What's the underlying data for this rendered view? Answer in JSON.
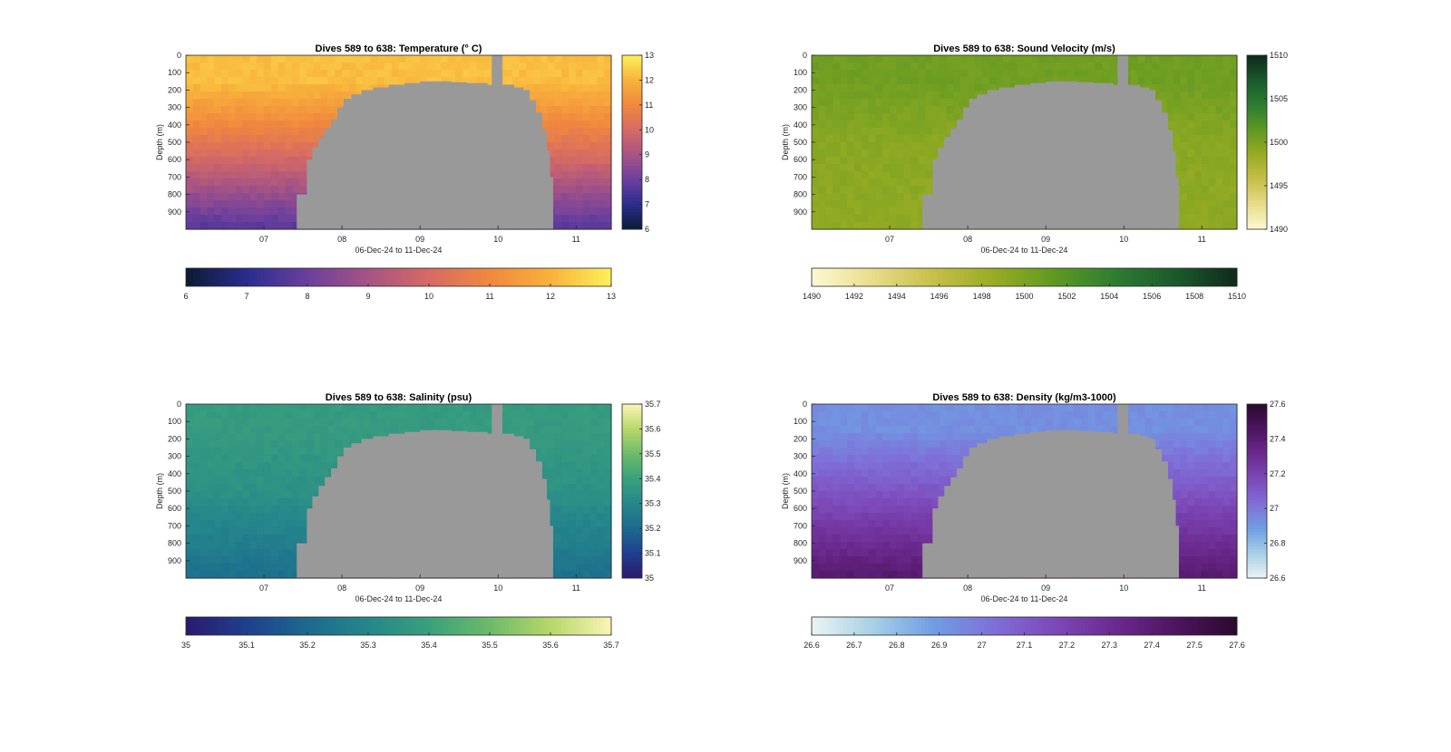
{
  "chart_data": [
    {
      "type": "heatmap",
      "title": "Dives 589 to 638: Temperature (° C)",
      "xlabel": "06-Dec-24 to 11-Dec-24",
      "ylabel": "Depth (m)",
      "x_ticks": [
        "07",
        "08",
        "09",
        "10",
        "11"
      ],
      "x_tick_days": [
        7,
        8,
        9,
        10,
        11
      ],
      "xlim_days": [
        6.0,
        11.45
      ],
      "y_ticks": [
        0,
        100,
        200,
        300,
        400,
        500,
        600,
        700,
        800,
        900
      ],
      "ylim": [
        0,
        1000
      ],
      "y_reversed": true,
      "clim": [
        6,
        13
      ],
      "colorbar_ticks": [
        6,
        7,
        8,
        9,
        10,
        11,
        12,
        13
      ],
      "horizontal_colorbar_ticks": [
        6,
        7,
        8,
        9,
        10,
        11,
        12,
        13
      ],
      "colormap": [
        "#0b1b33",
        "#2a2d8e",
        "#6b3f9e",
        "#a65385",
        "#d66a64",
        "#f0883e",
        "#f8b23b",
        "#fdf05a"
      ],
      "surface_value": 12.2,
      "mid_value": 10.5,
      "deep_value": 7.6,
      "mask_color": "#999999"
    },
    {
      "type": "heatmap",
      "title": "Dives 589 to 638: Sound Velocity (m/s)",
      "xlabel": "06-Dec-24 to 11-Dec-24",
      "ylabel": "Depth (m)",
      "x_ticks": [
        "07",
        "08",
        "09",
        "10",
        "11"
      ],
      "x_tick_days": [
        7,
        8,
        9,
        10,
        11
      ],
      "xlim_days": [
        6.0,
        11.45
      ],
      "y_ticks": [
        0,
        100,
        200,
        300,
        400,
        500,
        600,
        700,
        800,
        900
      ],
      "ylim": [
        0,
        1000
      ],
      "y_reversed": true,
      "clim": [
        1490,
        1510
      ],
      "colorbar_ticks": [
        1490,
        1495,
        1500,
        1505,
        1510
      ],
      "horizontal_colorbar_ticks": [
        1490,
        1492,
        1494,
        1496,
        1498,
        1500,
        1502,
        1504,
        1506,
        1508,
        1510
      ],
      "colormap": [
        "#fdf9d3",
        "#e9dc8a",
        "#c7bf4a",
        "#98ac23",
        "#5f9922",
        "#2e7d32",
        "#1a5a2c",
        "#102a1c"
      ],
      "surface_value": 1500.6,
      "mid_value": 1499.3,
      "deep_value": 1499.0,
      "mask_color": "#999999"
    },
    {
      "type": "heatmap",
      "title": "Dives 589 to 638: Salinity (psu)",
      "xlabel": "06-Dec-24 to 11-Dec-24",
      "ylabel": "Depth (m)",
      "x_ticks": [
        "07",
        "08",
        "09",
        "10",
        "11"
      ],
      "x_tick_days": [
        7,
        8,
        9,
        10,
        11
      ],
      "xlim_days": [
        6.0,
        11.45
      ],
      "y_ticks": [
        0,
        100,
        200,
        300,
        400,
        500,
        600,
        700,
        800,
        900
      ],
      "ylim": [
        0,
        1000
      ],
      "y_reversed": true,
      "clim": [
        35,
        35.7
      ],
      "colorbar_ticks": [
        35,
        35.1,
        35.2,
        35.3,
        35.4,
        35.5,
        35.6,
        35.7
      ],
      "horizontal_colorbar_ticks": [
        35,
        35.1,
        35.2,
        35.3,
        35.4,
        35.5,
        35.6,
        35.7
      ],
      "colormap": [
        "#2b1a6e",
        "#1f3f8f",
        "#1c6a8e",
        "#25878b",
        "#3aa07c",
        "#6cba6a",
        "#b7d768",
        "#fbf4b5"
      ],
      "surface_value": 35.38,
      "mid_value": 35.34,
      "deep_value": 35.22,
      "mask_color": "#999999"
    },
    {
      "type": "heatmap",
      "title": "Dives 589 to 638: Density (kg/m3-1000)",
      "xlabel": "06-Dec-24 to 11-Dec-24",
      "ylabel": "Depth (m)",
      "x_ticks": [
        "07",
        "08",
        "09",
        "10",
        "11"
      ],
      "x_tick_days": [
        7,
        8,
        9,
        10,
        11
      ],
      "xlim_days": [
        6.0,
        11.45
      ],
      "y_ticks": [
        0,
        100,
        200,
        300,
        400,
        500,
        600,
        700,
        800,
        900
      ],
      "ylim": [
        0,
        1000
      ],
      "y_reversed": true,
      "clim": [
        26.6,
        27.6
      ],
      "colorbar_ticks": [
        26.6,
        26.8,
        27,
        27.2,
        27.4,
        27.6
      ],
      "colorbar_tick_labels": [
        "26.6",
        "26.8",
        "27",
        "27.2",
        "27.4",
        "27.6"
      ],
      "horizontal_colorbar_ticks": [
        26.6,
        26.7,
        26.8,
        26.9,
        27,
        27.1,
        27.2,
        27.3,
        27.4,
        27.5,
        27.6
      ],
      "horizontal_colorbar_tick_labels": [
        "26.6",
        "26.7",
        "26.8",
        "26.9",
        "27",
        "27.1",
        "27.2",
        "27.3",
        "27.4",
        "27.5",
        "27.6"
      ],
      "colormap": [
        "#eaf4f4",
        "#a8d0e6",
        "#6f9ee3",
        "#7f6fd8",
        "#7d48b8",
        "#6b2a8f",
        "#4e1460",
        "#2a0a2e"
      ],
      "surface_value": 26.93,
      "mid_value": 27.12,
      "deep_value": 27.42,
      "mask_color": "#999999"
    }
  ]
}
